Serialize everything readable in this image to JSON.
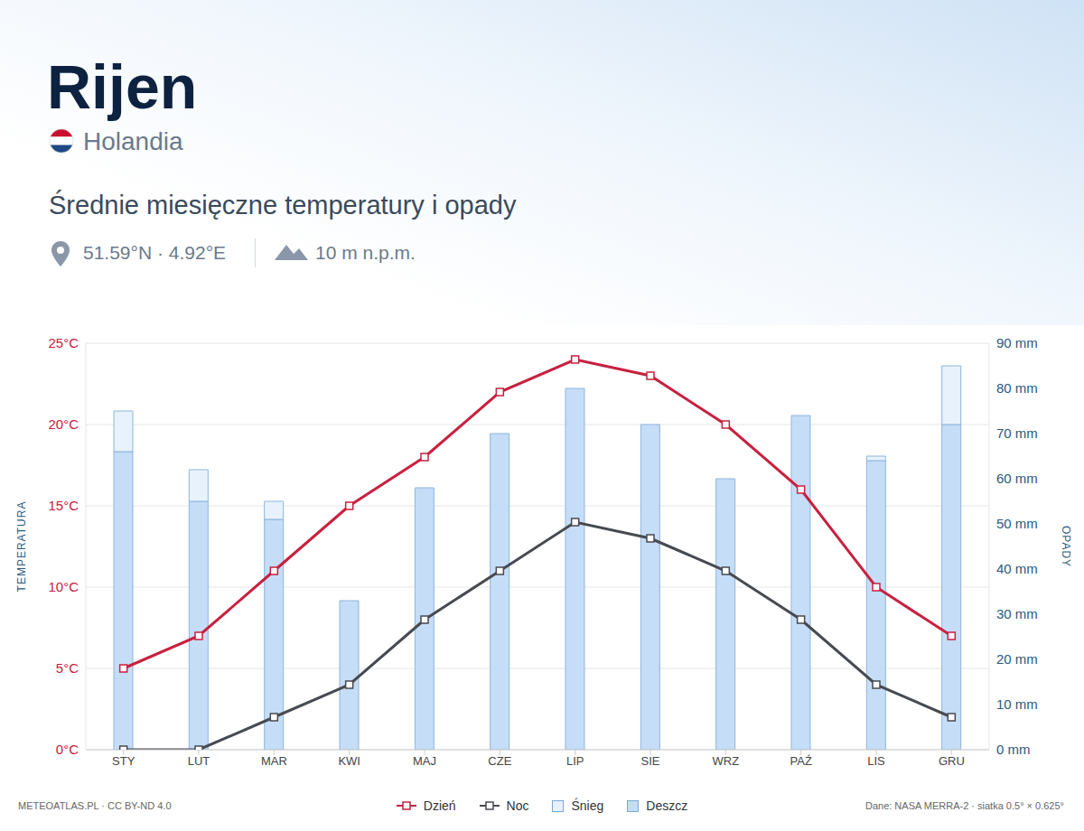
{
  "title": "Rijen",
  "country": "Holandia",
  "subtitle": "Średnie miesięczne temperatury i opady",
  "coordinates": "51.59°N · 4.92°E",
  "elevation": "10 m n.p.m.",
  "credit": "METEOATLAS.PL · CC BY-ND 4.0",
  "source": "Dane: NASA MERRA-2 · siatka 0.5° × 0.625°",
  "chart_data": {
    "type": "combo",
    "y_label": "TEMPERATURA",
    "y2_label": "OPADY",
    "categories": [
      "STY",
      "LUT",
      "MAR",
      "KWI",
      "MAJ",
      "CZE",
      "LIP",
      "SIE",
      "WRZ",
      "PAŹ",
      "LIS",
      "GRU"
    ],
    "series": [
      {
        "name": "Dzień",
        "type": "line",
        "color": "#c8203f",
        "marker": "square",
        "values": [
          5,
          7,
          11,
          15,
          18,
          22,
          24,
          23,
          20,
          16,
          10,
          7
        ]
      },
      {
        "name": "Noc",
        "type": "line",
        "color": "#474a50",
        "marker": "square",
        "values": [
          0,
          0,
          2,
          4,
          8,
          11,
          14,
          13,
          11,
          8,
          4,
          2
        ]
      },
      {
        "name": "Śnieg",
        "type": "bar",
        "axis": "y2",
        "color": "#e8f2fc",
        "values": [
          9,
          7,
          4,
          0,
          0,
          0,
          0,
          0,
          0,
          0,
          1,
          13
        ]
      },
      {
        "name": "Deszcz",
        "type": "bar",
        "axis": "y2",
        "color": "#c6ddf7",
        "values": [
          66,
          55,
          51,
          33,
          58,
          70,
          80,
          72,
          60,
          74,
          64,
          72
        ]
      }
    ],
    "stacked": true,
    "ylim": [
      0,
      25
    ],
    "yticks": [
      {
        "value": 0,
        "label": "0°C"
      },
      {
        "value": 5,
        "label": "5°C"
      },
      {
        "value": 10,
        "label": "10°C"
      },
      {
        "value": 15,
        "label": "15°C"
      },
      {
        "value": 20,
        "label": "20°C"
      },
      {
        "value": 25,
        "label": "25°C"
      }
    ],
    "y2lim": [
      0,
      90
    ],
    "y2ticks": [
      {
        "value": 0,
        "label": "0 mm"
      },
      {
        "value": 10,
        "label": "10 mm"
      },
      {
        "value": 20,
        "label": "20 mm"
      },
      {
        "value": 30,
        "label": "30 mm"
      },
      {
        "value": 40,
        "label": "40 mm"
      },
      {
        "value": 50,
        "label": "50 mm"
      },
      {
        "value": 60,
        "label": "60 mm"
      },
      {
        "value": 70,
        "label": "70 mm"
      },
      {
        "value": 80,
        "label": "80 mm"
      },
      {
        "value": 90,
        "label": "90 mm"
      }
    ],
    "grid": true,
    "legend": "bottom"
  }
}
